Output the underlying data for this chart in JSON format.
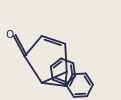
{
  "bg_color": "#edeae4",
  "line_color": "#2a2a4a",
  "line_width": 1.3,
  "fig_width": 1.21,
  "fig_height": 1.0,
  "dpi": 100,
  "xlim": [
    -1.3,
    2.1
  ],
  "ylim": [
    -1.2,
    2.0
  ]
}
